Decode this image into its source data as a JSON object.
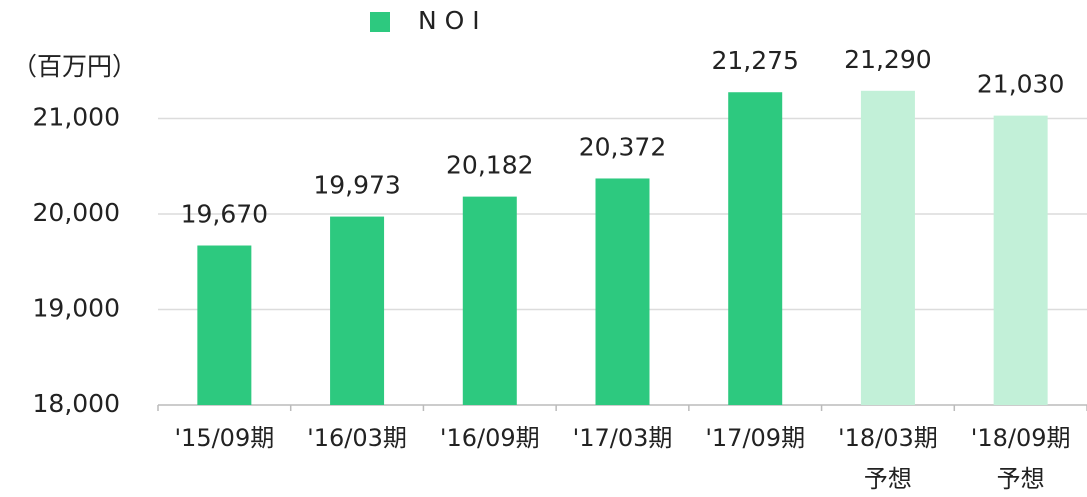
{
  "chart_data": {
    "type": "bar",
    "unit_label": "（百万円）",
    "legend": "N O I",
    "legend_color": "#2dc97f",
    "categories": [
      "'15/09期",
      "'16/03期",
      "'16/09期",
      "'17/03期",
      "'17/09期",
      "'18/03期\n予想",
      "'18/09期\n予想"
    ],
    "values": [
      19670,
      19973,
      20182,
      20372,
      21275,
      21290,
      21030
    ],
    "value_labels": [
      "19,670",
      "19,973",
      "20,182",
      "20,372",
      "21,275",
      "21,290",
      "21,030"
    ],
    "colors": [
      "#2dc97f",
      "#2dc97f",
      "#2dc97f",
      "#2dc97f",
      "#2dc97f",
      "#c2f0d8",
      "#c2f0d8"
    ],
    "ylim": [
      18000,
      22000
    ],
    "yticks": [
      {
        "value": 18000,
        "label": "18,000"
      },
      {
        "value": 19000,
        "label": "19,000"
      },
      {
        "value": 20000,
        "label": "20,000"
      },
      {
        "value": 21000,
        "label": "21,000"
      }
    ],
    "grid": true
  }
}
